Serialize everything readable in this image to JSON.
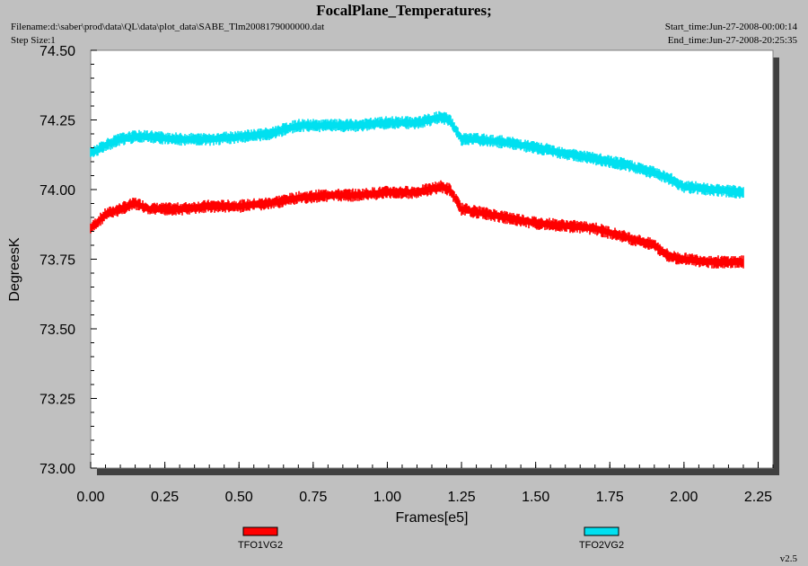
{
  "header": {
    "title": "FocalPlane_Temperatures;",
    "filename": "Filename:d:\\saber\\prod\\data\\QL\\data\\plot_data\\SABE_Tlm2008179000000.dat",
    "step_size": "Step Size:1",
    "start_time": "Start_time:Jun-27-2008-00:00:14",
    "end_time": "End_time:Jun-27-2008-20:25:35"
  },
  "footer": {
    "version": "v2.5"
  },
  "chart_data": {
    "type": "line",
    "xlabel": "Frames[e5]",
    "ylabel": "DegreesK",
    "xlim": [
      0,
      2.3
    ],
    "ylim": [
      73.0,
      74.5
    ],
    "xticks": [
      "0.00",
      "0.25",
      "0.50",
      "0.75",
      "1.00",
      "1.25",
      "1.50",
      "1.75",
      "2.00",
      "2.25"
    ],
    "yticks": [
      "73.00",
      "73.25",
      "73.50",
      "73.75",
      "74.00",
      "74.25",
      "74.50"
    ],
    "grid": false,
    "legend_position": "bottom",
    "series": [
      {
        "name": "TFO1VG2",
        "color": "#ff0000",
        "noise_band": 0.04,
        "x": [
          0.0,
          0.05,
          0.1,
          0.15,
          0.2,
          0.3,
          0.4,
          0.5,
          0.6,
          0.7,
          0.8,
          0.9,
          1.0,
          1.1,
          1.18,
          1.21,
          1.25,
          1.3,
          1.4,
          1.5,
          1.6,
          1.7,
          1.8,
          1.9,
          1.95,
          2.0,
          2.1,
          2.2
        ],
        "y": [
          73.86,
          73.91,
          73.93,
          73.95,
          73.93,
          73.93,
          73.94,
          73.94,
          73.95,
          73.97,
          73.98,
          73.98,
          73.99,
          73.99,
          74.01,
          74.0,
          73.93,
          73.92,
          73.9,
          73.88,
          73.87,
          73.86,
          73.83,
          73.8,
          73.76,
          73.75,
          73.74,
          73.74
        ]
      },
      {
        "name": "TFO2VG2",
        "color": "#00e0f0",
        "noise_band": 0.04,
        "x": [
          0.0,
          0.05,
          0.1,
          0.15,
          0.2,
          0.3,
          0.4,
          0.5,
          0.6,
          0.7,
          0.8,
          0.9,
          1.0,
          1.1,
          1.18,
          1.21,
          1.25,
          1.3,
          1.4,
          1.5,
          1.6,
          1.7,
          1.8,
          1.9,
          1.95,
          2.0,
          2.1,
          2.2
        ],
        "y": [
          74.13,
          74.16,
          74.18,
          74.19,
          74.19,
          74.18,
          74.18,
          74.19,
          74.2,
          74.23,
          74.23,
          74.23,
          74.24,
          74.24,
          74.26,
          74.25,
          74.18,
          74.18,
          74.17,
          74.15,
          74.13,
          74.11,
          74.09,
          74.06,
          74.04,
          74.01,
          74.0,
          73.99
        ]
      }
    ]
  }
}
